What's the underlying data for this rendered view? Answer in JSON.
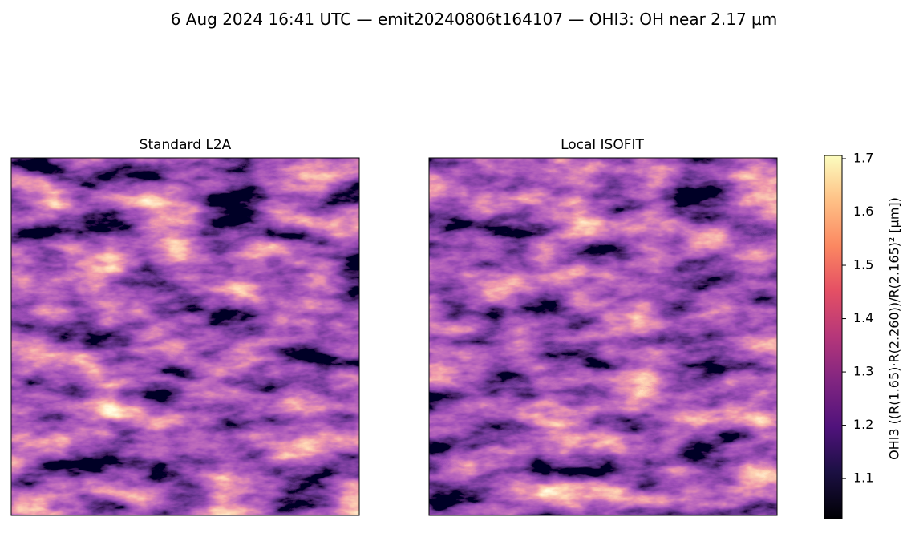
{
  "chart_data": {
    "type": "heatmap",
    "title": "6 Aug 2024 16:41 UTC — emit20240806t164107 — OHI3: OH near 2.17 µm",
    "panels": [
      {
        "title": "Standard L2A"
      },
      {
        "title": "Local ISOFIT"
      }
    ],
    "colormap": "magma",
    "colorbar": {
      "label": "OHI3  ((R(1.65)·R(2.260))/R(2.165)²  [µm])",
      "lim": [
        1.025,
        1.706
      ],
      "ticks": [
        1.1,
        1.2,
        1.3,
        1.4,
        1.5,
        1.6,
        1.7
      ]
    }
  }
}
